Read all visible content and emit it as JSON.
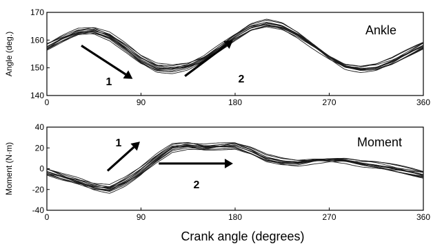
{
  "chart_data": [
    {
      "type": "line",
      "panel_label": "Ankle",
      "ylabel": "Angle (deg.)",
      "xlabel": "Crank angle (degrees)",
      "xlim": [
        0,
        360
      ],
      "ylim": [
        140,
        170
      ],
      "x_ticks": [
        "0",
        "90",
        "180",
        "270",
        "360"
      ],
      "y_ticks": [
        "140",
        "150",
        "160",
        "170"
      ],
      "grid": false,
      "mean_curve": {
        "x": [
          0,
          15,
          30,
          45,
          60,
          75,
          90,
          105,
          120,
          135,
          150,
          165,
          180,
          195,
          210,
          225,
          240,
          255,
          270,
          285,
          300,
          315,
          330,
          345,
          360
        ],
        "y": [
          157.5,
          160.5,
          163,
          163.5,
          161.5,
          157.5,
          153,
          150,
          149.5,
          150.5,
          153,
          157,
          161,
          164.5,
          166,
          165,
          162,
          158,
          154,
          150.5,
          149.5,
          150,
          152,
          155,
          158
        ]
      },
      "trials": 12,
      "annotations": [
        {
          "label": "1",
          "from": [
            33,
            158
          ],
          "to": [
            82,
            146
          ]
        },
        {
          "label": "2",
          "from": [
            132,
            147
          ],
          "to": [
            178,
            160
          ]
        }
      ]
    },
    {
      "type": "line",
      "panel_label": "Moment",
      "ylabel": "Moment (N·m)",
      "xlabel": "Crank angle (degrees)",
      "xlim": [
        0,
        360
      ],
      "ylim": [
        -40,
        40
      ],
      "x_ticks": [
        "0",
        "90",
        "180",
        "270",
        "360"
      ],
      "y_ticks": [
        "-40",
        "-20",
        "0",
        "20",
        "40"
      ],
      "grid": false,
      "mean_curve": {
        "x": [
          0,
          15,
          30,
          45,
          60,
          75,
          90,
          105,
          120,
          135,
          150,
          165,
          180,
          195,
          210,
          225,
          240,
          255,
          270,
          285,
          300,
          315,
          330,
          345,
          360
        ],
        "y": [
          -3,
          -8,
          -12,
          -17,
          -19,
          -12,
          -2,
          10,
          20,
          22,
          20,
          21,
          22,
          17,
          10,
          7,
          6,
          8,
          9,
          8,
          5,
          3,
          0,
          -3,
          -6
        ]
      },
      "trials": 12,
      "annotations": [
        {
          "label": "1",
          "from": [
            58,
            -2
          ],
          "to": [
            89,
            26
          ]
        },
        {
          "label": "2",
          "from": [
            107,
            5
          ],
          "to": [
            178,
            5
          ]
        }
      ]
    }
  ]
}
